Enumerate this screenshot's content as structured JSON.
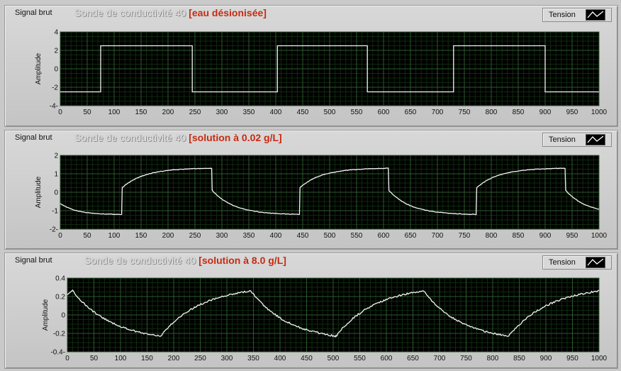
{
  "panels": [
    {
      "label": "Signal brut",
      "title": "Sonde de conductivité 40",
      "subtitle": "[eau désionisée]",
      "legend": "Tension",
      "ylabel": "Amplitude",
      "chart_data": {
        "type": "line",
        "title": "Sonde de conductivité 40 [eau désionisée]",
        "xlabel": "",
        "ylabel": "Amplitude",
        "xlim": [
          0,
          1000
        ],
        "ylim": [
          -4,
          4
        ],
        "xticks": [
          0,
          50,
          100,
          150,
          200,
          250,
          300,
          350,
          400,
          450,
          500,
          550,
          600,
          650,
          700,
          750,
          800,
          850,
          900,
          950,
          1000
        ],
        "yticks": [
          4,
          2,
          0,
          -2,
          -4
        ],
        "ytick_labels": [
          "4",
          "2",
          "0",
          "-2",
          "-4-"
        ],
        "series": [
          {
            "shape": "square",
            "low": -2.5,
            "high": 2.5,
            "edges": [
              75,
              245,
              403,
              570,
              730,
              900
            ],
            "start_level": "low"
          }
        ]
      }
    },
    {
      "label": "Signal brut",
      "title": "Sonde de conductivité 40",
      "subtitle": "[solution à 0.02 g/L]",
      "legend": "Tension",
      "ylabel": "Amplitude",
      "chart_data": {
        "type": "line",
        "title": "Sonde de conductivité 40 [solution à 0.02 g/L]",
        "xlabel": "",
        "ylabel": "Amplitude",
        "xlim": [
          0,
          1000
        ],
        "ylim": [
          -2,
          2
        ],
        "xticks": [
          0,
          50,
          100,
          150,
          200,
          250,
          300,
          350,
          400,
          450,
          500,
          550,
          600,
          650,
          700,
          750,
          800,
          850,
          900,
          950,
          1000
        ],
        "yticks": [
          2,
          1,
          0,
          -1,
          -2
        ],
        "ytick_labels": [
          "2",
          "1",
          "0",
          "-1",
          "-2-"
        ],
        "series": [
          {
            "shape": "decay_steps",
            "edges": [
              115,
              282,
              445,
              610,
              773,
              938
            ],
            "start_level": "low",
            "high_after_edge": 0.25,
            "high_peak": 1.3,
            "low_after_edge": 0.1,
            "low_min": -1.2,
            "start_value": -0.6
          }
        ]
      }
    },
    {
      "label": "Signal brut",
      "title": "Sonde de conductivité 40",
      "subtitle": "[solution à 8.0 g/L]",
      "legend": "Tension",
      "ylabel": "Amplitude",
      "chart_data": {
        "type": "line",
        "title": "Sonde de conductivité 40 [solution à 8.0 g/L]",
        "xlabel": "",
        "ylabel": "Amplitude",
        "xlim": [
          0,
          1000
        ],
        "ylim": [
          -0.4,
          0.4
        ],
        "xticks": [
          0,
          50,
          100,
          150,
          200,
          250,
          300,
          350,
          400,
          450,
          500,
          550,
          600,
          650,
          700,
          750,
          800,
          850,
          900,
          950,
          1000
        ],
        "yticks": [
          0.4,
          0.2,
          0,
          -0.2,
          -0.4
        ],
        "ytick_labels": [
          "0.4",
          "0.2",
          "0",
          "-0.2",
          "-0.4-"
        ],
        "series": [
          {
            "shape": "exp_triangle",
            "turns": [
              10,
              175,
              345,
              505,
              670,
              830,
              1000
            ],
            "peak": 0.26,
            "trough": -0.23
          }
        ]
      }
    }
  ]
}
